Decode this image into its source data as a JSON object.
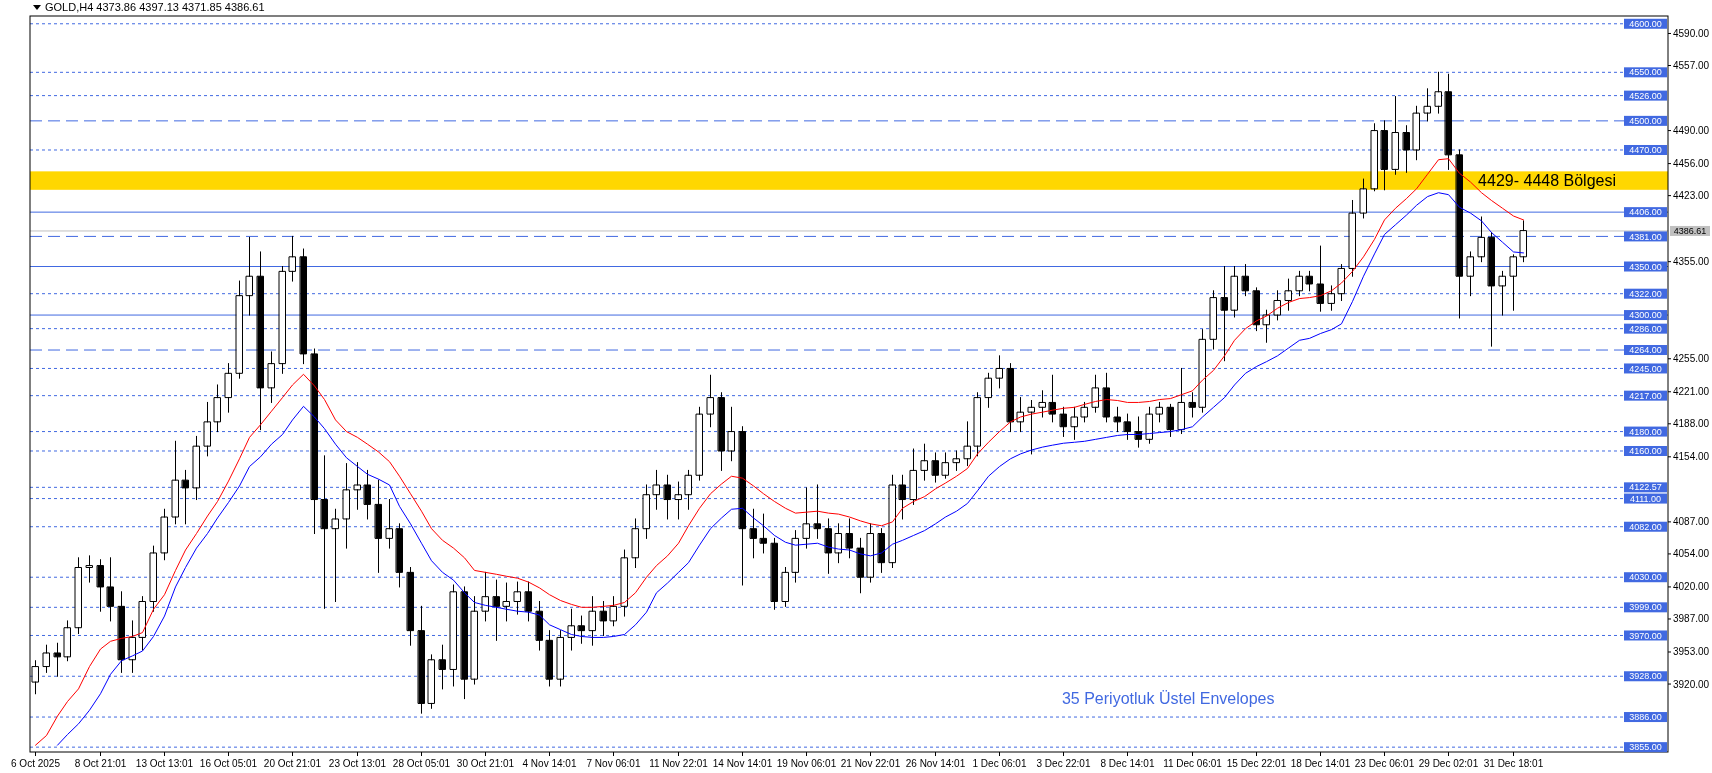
{
  "chart_data": {
    "type": "candlestick",
    "title": "GOLD,H4 4373.86 4397.13 4371.85 4386.61",
    "categories": [
      "6 Oct 2025",
      null,
      null,
      null,
      null,
      null,
      "8 Oct 21:01",
      null,
      null,
      null,
      null,
      null,
      "13 Oct 13:01",
      null,
      null,
      null,
      null,
      null,
      "16 Oct 05:01",
      null,
      null,
      null,
      null,
      null,
      "20 Oct 21:01",
      null,
      null,
      null,
      null,
      null,
      "23 Oct 13:01",
      null,
      null,
      null,
      null,
      null,
      "28 Oct 05:01",
      null,
      null,
      null,
      null,
      null,
      "30 Oct 21:01",
      null,
      null,
      null,
      null,
      null,
      "4 Nov 14:01",
      null,
      null,
      null,
      null,
      null,
      "7 Nov 06:01",
      null,
      null,
      null,
      null,
      null,
      "11 Nov 22:01",
      null,
      null,
      null,
      null,
      null,
      "14 Nov 14:01",
      null,
      null,
      null,
      null,
      null,
      "19 Nov 06:01",
      null,
      null,
      null,
      null,
      null,
      "21 Nov 22:01",
      null,
      null,
      null,
      null,
      null,
      "26 Nov 14:01",
      null,
      null,
      null,
      null,
      null,
      "1 Dec 06:01",
      null,
      null,
      null,
      null,
      null,
      "3 Dec 22:01",
      null,
      null,
      null,
      null,
      null,
      "8 Dec 14:01",
      null,
      null,
      null,
      null,
      null,
      "11 Dec 06:01",
      null,
      null,
      null,
      null,
      null,
      "15 Dec 22:01",
      null,
      null,
      null,
      null,
      null,
      "18 Dec 14:01",
      null,
      null,
      null,
      null,
      null,
      "23 Dec 06:01",
      null,
      null,
      null,
      null,
      null,
      "29 Dec 02:01",
      null,
      null,
      null,
      null,
      null,
      "31 Dec 18:01",
      null
    ],
    "ohlc": [
      [
        3922,
        3944,
        3910,
        3938
      ],
      [
        3938,
        3960,
        3932,
        3952
      ],
      [
        3952,
        3962,
        3928,
        3948
      ],
      [
        3948,
        3985,
        3944,
        3978
      ],
      [
        3978,
        4050,
        3972,
        4040
      ],
      [
        4040,
        4052,
        4025,
        4042
      ],
      [
        4042,
        4048,
        3995,
        4020
      ],
      [
        4020,
        4050,
        3985,
        4000
      ],
      [
        4000,
        4015,
        3932,
        3945
      ],
      [
        3945,
        3985,
        3932,
        3968
      ],
      [
        3968,
        4010,
        3955,
        4005
      ],
      [
        4005,
        4062,
        3995,
        4055
      ],
      [
        4055,
        4100,
        4048,
        4092
      ],
      [
        4092,
        4170,
        4085,
        4130
      ],
      [
        4130,
        4140,
        4085,
        4122
      ],
      [
        4122,
        4175,
        4110,
        4165
      ],
      [
        4165,
        4210,
        4155,
        4190
      ],
      [
        4190,
        4228,
        4180,
        4215
      ],
      [
        4215,
        4250,
        4200,
        4240
      ],
      [
        4240,
        4335,
        4235,
        4320
      ],
      [
        4320,
        4380,
        4300,
        4340
      ],
      [
        4340,
        4365,
        4182,
        4225
      ],
      [
        4225,
        4262,
        4210,
        4250
      ],
      [
        4250,
        4350,
        4240,
        4345
      ],
      [
        4345,
        4381,
        4335,
        4360
      ],
      [
        4360,
        4368,
        4250,
        4260
      ],
      [
        4260,
        4265,
        4075,
        4110
      ],
      [
        4110,
        4155,
        3998,
        4080
      ],
      [
        4080,
        4100,
        4005,
        4090
      ],
      [
        4090,
        4147,
        4060,
        4120
      ],
      [
        4120,
        4148,
        4100,
        4125
      ],
      [
        4125,
        4140,
        4090,
        4105
      ],
      [
        4105,
        4130,
        4035,
        4070
      ],
      [
        4070,
        4110,
        4060,
        4080
      ],
      [
        4080,
        4085,
        4020,
        4035
      ],
      [
        4035,
        4040,
        3960,
        3975
      ],
      [
        3975,
        4000,
        3890,
        3900
      ],
      [
        3900,
        3950,
        3895,
        3945
      ],
      [
        3945,
        3960,
        3915,
        3935
      ],
      [
        3935,
        4022,
        3918,
        4015
      ],
      [
        4015,
        4020,
        3905,
        3925
      ],
      [
        3925,
        4010,
        3920,
        3995
      ],
      [
        3995,
        4035,
        3985,
        4010
      ],
      [
        4010,
        4027,
        3965,
        4000
      ],
      [
        4000,
        4024,
        3985,
        4005
      ],
      [
        4005,
        4025,
        3992,
        4015
      ],
      [
        4015,
        4025,
        3985,
        3995
      ],
      [
        3995,
        4005,
        3955,
        3965
      ],
      [
        3965,
        3975,
        3918,
        3925
      ],
      [
        3925,
        3975,
        3918,
        3968
      ],
      [
        3968,
        3997,
        3955,
        3980
      ],
      [
        3980,
        3990,
        3962,
        3975
      ],
      [
        3975,
        4010,
        3960,
        3995
      ],
      [
        3995,
        4005,
        3970,
        3985
      ],
      [
        3985,
        4010,
        3980,
        4000
      ],
      [
        4000,
        4058,
        3990,
        4050
      ],
      [
        4050,
        4090,
        4040,
        4080
      ],
      [
        4080,
        4125,
        4070,
        4115
      ],
      [
        4115,
        4140,
        4100,
        4125
      ],
      [
        4125,
        4135,
        4090,
        4110
      ],
      [
        4110,
        4128,
        4090,
        4115
      ],
      [
        4115,
        4140,
        4100,
        4135
      ],
      [
        4135,
        4205,
        4130,
        4198
      ],
      [
        4198,
        4238,
        4185,
        4215
      ],
      [
        4215,
        4220,
        4140,
        4160
      ],
      [
        4160,
        4205,
        4150,
        4180
      ],
      [
        4180,
        4185,
        4022,
        4080
      ],
      [
        4080,
        4100,
        4050,
        4070
      ],
      [
        4070,
        4095,
        4055,
        4065
      ],
      [
        4065,
        4070,
        3997,
        4005
      ],
      [
        4005,
        4040,
        4000,
        4035
      ],
      [
        4035,
        4078,
        4025,
        4070
      ],
      [
        4070,
        4122,
        4060,
        4085
      ],
      [
        4085,
        4125,
        4070,
        4080
      ],
      [
        4080,
        4090,
        4034,
        4055
      ],
      [
        4055,
        4085,
        4045,
        4075
      ],
      [
        4075,
        4090,
        4050,
        4060
      ],
      [
        4060,
        4070,
        4014,
        4030
      ],
      [
        4030,
        4085,
        4025,
        4075
      ],
      [
        4075,
        4080,
        4035,
        4045
      ],
      [
        4045,
        4135,
        4040,
        4125
      ],
      [
        4125,
        4135,
        4090,
        4110
      ],
      [
        4110,
        4162,
        4105,
        4140
      ],
      [
        4140,
        4167,
        4130,
        4150
      ],
      [
        4150,
        4158,
        4128,
        4135
      ],
      [
        4135,
        4158,
        4132,
        4148
      ],
      [
        4148,
        4160,
        4140,
        4152
      ],
      [
        4152,
        4190,
        4145,
        4165
      ],
      [
        4165,
        4220,
        4155,
        4215
      ],
      [
        4215,
        4240,
        4205,
        4235
      ],
      [
        4235,
        4258,
        4225,
        4245
      ],
      [
        4245,
        4250,
        4180,
        4190
      ],
      [
        4190,
        4215,
        4180,
        4200
      ],
      [
        4200,
        4212,
        4157,
        4205
      ],
      [
        4205,
        4222,
        4195,
        4210
      ],
      [
        4210,
        4238,
        4190,
        4198
      ],
      [
        4198,
        4205,
        4175,
        4185
      ],
      [
        4185,
        4205,
        4172,
        4195
      ],
      [
        4195,
        4210,
        4190,
        4205
      ],
      [
        4205,
        4238,
        4200,
        4225
      ],
      [
        4225,
        4240,
        4190,
        4195
      ],
      [
        4195,
        4205,
        4180,
        4190
      ],
      [
        4190,
        4198,
        4172,
        4180
      ],
      [
        4180,
        4195,
        4164,
        4172
      ],
      [
        4172,
        4205,
        4168,
        4198
      ],
      [
        4198,
        4210,
        4190,
        4205
      ],
      [
        4205,
        4208,
        4175,
        4182
      ],
      [
        4182,
        4245,
        4178,
        4210
      ],
      [
        4210,
        4220,
        4195,
        4205
      ],
      [
        4205,
        4285,
        4200,
        4275
      ],
      [
        4275,
        4325,
        4265,
        4318
      ],
      [
        4318,
        4350,
        4253,
        4305
      ],
      [
        4305,
        4350,
        4298,
        4340
      ],
      [
        4340,
        4352,
        4320,
        4325
      ],
      [
        4325,
        4328,
        4284,
        4290
      ],
      [
        4290,
        4305,
        4272,
        4300
      ],
      [
        4300,
        4325,
        4295,
        4315
      ],
      [
        4315,
        4337,
        4305,
        4325
      ],
      [
        4325,
        4345,
        4320,
        4340
      ],
      [
        4340,
        4345,
        4325,
        4332
      ],
      [
        4332,
        4371,
        4304,
        4312
      ],
      [
        4312,
        4330,
        4305,
        4322
      ],
      [
        4322,
        4352,
        4315,
        4348
      ],
      [
        4348,
        4418,
        4340,
        4405
      ],
      [
        4405,
        4440,
        4400,
        4430
      ],
      [
        4430,
        4497,
        4428,
        4490
      ],
      [
        4490,
        4500,
        4429,
        4450
      ],
      [
        4450,
        4525,
        4445,
        4488
      ],
      [
        4488,
        4495,
        4447,
        4470
      ],
      [
        4470,
        4515,
        4460,
        4508
      ],
      [
        4508,
        4533,
        4500,
        4515
      ],
      [
        4515,
        4550,
        4508,
        4530
      ],
      [
        4530,
        4548,
        4450,
        4465
      ],
      [
        4465,
        4470,
        4297,
        4340
      ],
      [
        4340,
        4365,
        4320,
        4360
      ],
      [
        4360,
        4401,
        4355,
        4380
      ],
      [
        4380,
        4385,
        4268,
        4330
      ],
      [
        4330,
        4345,
        4300,
        4340
      ],
      [
        4340,
        4362,
        4305,
        4360
      ],
      [
        4360,
        4397,
        4355,
        4387
      ]
    ],
    "series": [
      {
        "type": "line",
        "color": "#ff0000",
        "values": [
          3857,
          3867,
          3887,
          3902,
          3915,
          3938,
          3956,
          3964,
          3967,
          3969,
          3973,
          3997,
          4012,
          4037,
          4058,
          4075,
          4093,
          4108,
          4129,
          4152,
          4174,
          4187,
          4201,
          4215,
          4228,
          4239,
          4227,
          4213,
          4192,
          4180,
          4174,
          4167,
          4159,
          4149,
          4134,
          4116,
          4098,
          4080,
          4068,
          4060,
          4050,
          4037,
          4035,
          4033,
          4031,
          4029,
          4025,
          4019,
          4012,
          4006,
          4002,
          3999,
          3999,
          4000,
          4001,
          4004,
          4014,
          4030,
          4042,
          4052,
          4065,
          4083,
          4101,
          4116,
          4126,
          4134,
          4132,
          4124,
          4116,
          4108,
          4101,
          4096,
          4097,
          4098,
          4096,
          4095,
          4092,
          4088,
          4085,
          4083,
          4087,
          4101,
          4108,
          4113,
          4121,
          4127,
          4134,
          4142,
          4157,
          4169,
          4180,
          4190,
          4195,
          4198,
          4200,
          4202,
          4204,
          4205,
          4208,
          4211,
          4213,
          4212,
          4210,
          4210,
          4211,
          4213,
          4214,
          4218,
          4222,
          4233,
          4243,
          4258,
          4274,
          4286,
          4294,
          4299,
          4307,
          4313,
          4317,
          4318,
          4320,
          4325,
          4333,
          4345,
          4360,
          4378,
          4398,
          4410,
          4420,
          4430,
          4445,
          4460,
          4461,
          4446,
          4437,
          4426,
          4418,
          4410,
          4402,
          4398
        ]
      },
      {
        "type": "line",
        "color": "#0000ff",
        "values": [
          null,
          null,
          3857,
          3868,
          3879,
          3893,
          3910,
          3930,
          3944,
          3949,
          3954,
          3969,
          3990,
          4020,
          4040,
          4060,
          4075,
          4091,
          4107,
          4124,
          4144,
          4154,
          4167,
          4177,
          4192,
          4206,
          4195,
          4183,
          4167,
          4153,
          4144,
          4136,
          4131,
          4125,
          4103,
          4085,
          4065,
          4047,
          4035,
          4027,
          4014,
          4004,
          4001,
          3999,
          3997,
          3995,
          3994,
          3991,
          3981,
          3976,
          3971,
          3969,
          3968,
          3968,
          3969,
          3971,
          3981,
          3994,
          4014,
          4024,
          4035,
          4045,
          4063,
          4080,
          4091,
          4100,
          4101,
          4091,
          4083,
          4073,
          4066,
          4063,
          4064,
          4065,
          4061,
          4059,
          4058,
          4054,
          4052,
          4055,
          4064,
          4068,
          4073,
          4078,
          4085,
          4092,
          4098,
          4106,
          4119,
          4134,
          4144,
          4152,
          4157,
          4161,
          4164,
          4166,
          4168,
          4169,
          4170,
          4172,
          4174,
          4176,
          4177,
          4177,
          4178,
          4179,
          4180,
          4182,
          4185,
          4195,
          4205,
          4215,
          4228,
          4240,
          4247,
          4252,
          4258,
          4266,
          4274,
          4276,
          4281,
          4285,
          4291,
          4314,
          4340,
          4363,
          4383,
          4393,
          4403,
          4413,
          4422,
          4426,
          4424,
          4411,
          4405,
          4397,
          4385,
          4375,
          4365,
          4364
        ]
      }
    ],
    "ylim": [
      3850,
      4608
    ],
    "yticks": [
      {
        "value": 4590,
        "label": "4590.00"
      },
      {
        "value": 4557,
        "label": "4557.00"
      },
      {
        "value": 4490,
        "label": "4490.00"
      },
      {
        "value": 4456,
        "label": "4456.00"
      },
      {
        "value": 4423,
        "label": "4423.00"
      },
      {
        "value": 4355,
        "label": "4355.00"
      },
      {
        "value": 4255,
        "label": "4255.00"
      },
      {
        "value": 4221,
        "label": "4221.00"
      },
      {
        "value": 4188,
        "label": "4188.00"
      },
      {
        "value": 4154,
        "label": "4154.00"
      },
      {
        "value": 4087,
        "label": "4087.00"
      },
      {
        "value": 4054,
        "label": "4054.00"
      },
      {
        "value": 4020,
        "label": "4020.00"
      },
      {
        "value": 3987,
        "label": "3987.00"
      },
      {
        "value": 3953,
        "label": "3953.00"
      },
      {
        "value": 3920,
        "label": "3920.00"
      }
    ],
    "ref_lines": [
      {
        "axis": "y",
        "value": 4600,
        "label": "4600.00",
        "color": "#4169e1",
        "line_style": "dotted"
      },
      {
        "axis": "y",
        "value": 4550,
        "label": "4550.00",
        "color": "#4169e1",
        "line_style": "dotted"
      },
      {
        "axis": "y",
        "value": 4526,
        "label": "4526.00",
        "color": "#4169e1",
        "line_style": "dotted"
      },
      {
        "axis": "y",
        "value": 4500,
        "label": "4500.00",
        "color": "#4169e1",
        "line_style": "dashed"
      },
      {
        "axis": "y",
        "value": 4470,
        "label": "4470.00",
        "color": "#4169e1",
        "line_style": "dotted"
      },
      {
        "axis": "y",
        "value": 4406,
        "label": "4406.00",
        "color": "#4169e1",
        "line_style": "solid"
      },
      {
        "axis": "y",
        "value": 4381,
        "label": "4381.00",
        "color": "#4169e1",
        "line_style": "dashed"
      },
      {
        "axis": "y",
        "value": 4386.61,
        "label": "4386.61",
        "color": "#c0c0c0",
        "line_style": "solid"
      },
      {
        "axis": "y",
        "value": 4350,
        "label": "4350.00",
        "color": "#4169e1",
        "line_style": "solid"
      },
      {
        "axis": "y",
        "value": 4322,
        "label": "4322.00",
        "color": "#4169e1",
        "line_style": "dotted"
      },
      {
        "axis": "y",
        "value": 4300,
        "label": "4300.00",
        "color": "#4169e1",
        "line_style": "solid"
      },
      {
        "axis": "y",
        "value": 4286,
        "label": "4286.00",
        "color": "#4169e1",
        "line_style": "dotted"
      },
      {
        "axis": "y",
        "value": 4264,
        "label": "4264.00",
        "color": "#4169e1",
        "line_style": "dashed"
      },
      {
        "axis": "y",
        "value": 4245,
        "label": "4245.00",
        "color": "#4169e1",
        "line_style": "dotted"
      },
      {
        "axis": "y",
        "value": 4217,
        "label": "4217.00",
        "color": "#4169e1",
        "line_style": "dotted"
      },
      {
        "axis": "y",
        "value": 4180,
        "label": "4180.00",
        "color": "#4169e1",
        "line_style": "dotted"
      },
      {
        "axis": "y",
        "value": 4160,
        "label": "4160.00",
        "color": "#4169e1",
        "line_style": "dotted"
      },
      {
        "axis": "y",
        "value": 4122.57,
        "label": "4122.57",
        "color": "#4169e1",
        "line_style": "dotted"
      },
      {
        "axis": "y",
        "value": 4111,
        "label": "4111.00",
        "color": "#4169e1",
        "line_style": "dotted"
      },
      {
        "axis": "y",
        "value": 4082,
        "label": "4082.00",
        "color": "#4169e1",
        "line_style": "dotted"
      },
      {
        "axis": "y",
        "value": 4030,
        "label": "4030.00",
        "color": "#4169e1",
        "line_style": "dotted"
      },
      {
        "axis": "y",
        "value": 3999,
        "label": "3999.00",
        "color": "#4169e1",
        "line_style": "dotted"
      },
      {
        "axis": "y",
        "value": 3970,
        "label": "3970.00",
        "color": "#4169e1",
        "line_style": "dotted"
      },
      {
        "axis": "y",
        "value": 3928,
        "label": "3928.00",
        "color": "#4169e1",
        "line_style": "dotted"
      },
      {
        "axis": "y",
        "value": 3886,
        "label": "3886.00",
        "color": "#4169e1",
        "line_style": "dotted"
      },
      {
        "axis": "y",
        "value": 3855,
        "label": "3855.00",
        "color": "#4169e1",
        "line_style": "dotted"
      }
    ],
    "bands": [
      {
        "axis": "y",
        "from": 4429,
        "to": 4448,
        "label": "4429- 4448 Bölgesi",
        "color": "#ffd700"
      }
    ],
    "annotations": [
      "35 Periyotluk Üstel Envelopes"
    ]
  }
}
